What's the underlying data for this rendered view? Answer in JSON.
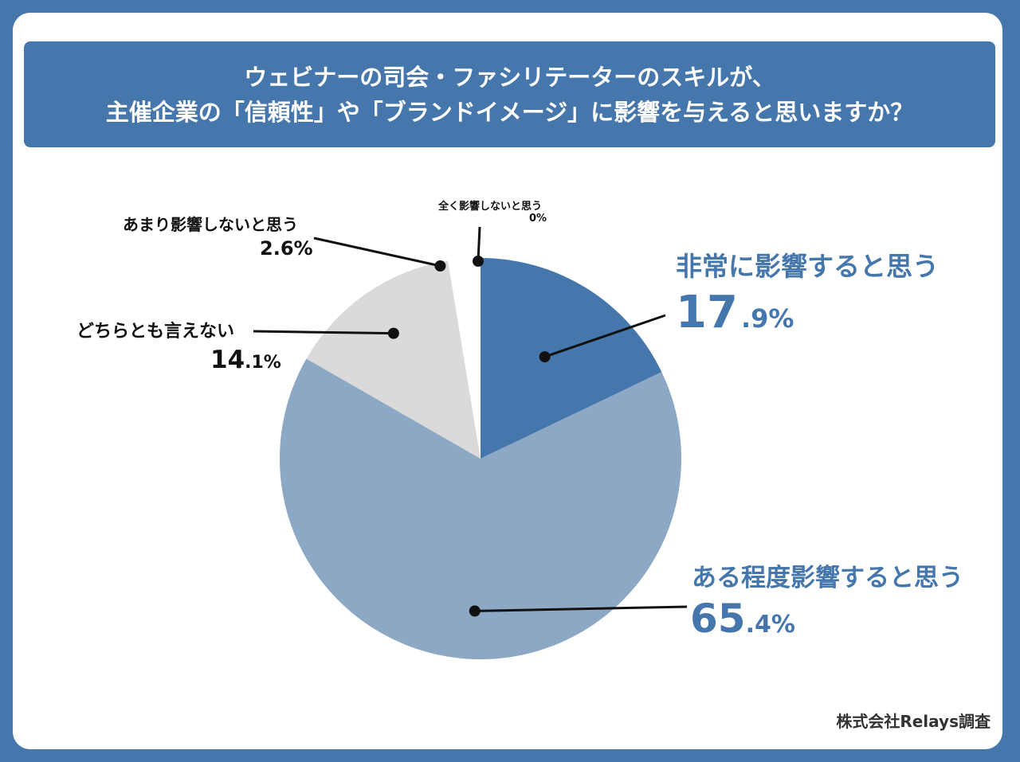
{
  "title": {
    "line1": "ウェビナーの司会・ファシリテーターのスキルが、",
    "line2": "主催企業の「信頼性」や「ブランドイメージ」に影響を与えると思いますか？"
  },
  "source": "株式会社Relays調査",
  "colors": {
    "background": "#4677AC",
    "slice1": "#4677AC",
    "slice2": "#8DA8C4",
    "slice3": "#DADADA",
    "slice4": "#FFFFFF",
    "slice5": "#FFFFFF"
  },
  "chart_data": {
    "type": "pie",
    "start": "12 o'clock",
    "direction": "clockwise",
    "categories": [
      "非常に影響すると思う",
      "ある程度影響すると思う",
      "どちらとも言えない",
      "あまり影響しないと思う",
      "全く影響しないと思う"
    ],
    "values": [
      17.9,
      65.4,
      14.1,
      2.6,
      0
    ],
    "labels": [
      {
        "name": "非常に影響すると思う",
        "int": "17",
        "dec": ".9%"
      },
      {
        "name": "ある程度影響すると思う",
        "int": "65",
        "dec": ".4%"
      },
      {
        "name": "どちらとも言えない",
        "int": "14",
        "dec": ".1%"
      },
      {
        "name": "あまり影響しないと思う",
        "full": "2.6%"
      },
      {
        "name": "全く影響しないと思う",
        "full": "0%"
      }
    ]
  }
}
